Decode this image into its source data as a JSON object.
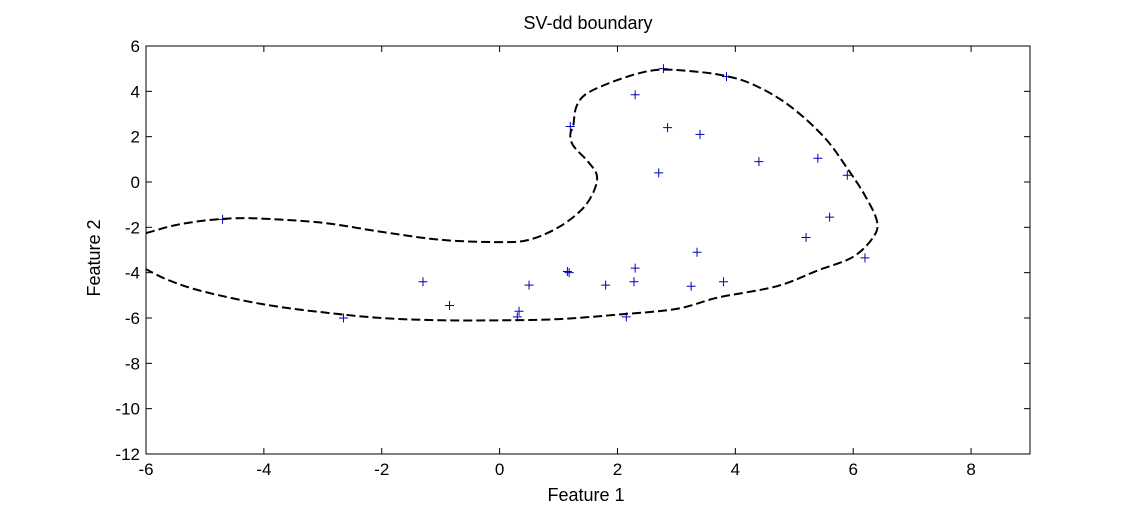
{
  "chart_data": {
    "type": "scatter",
    "title": "SV-dd boundary",
    "xlabel": "Feature 1",
    "ylabel": "Feature 2",
    "xlim": [
      -6,
      9
    ],
    "ylim": [
      -12,
      6
    ],
    "xticks": [
      -6,
      -4,
      -2,
      0,
      2,
      4,
      6,
      8
    ],
    "yticks": [
      6,
      4,
      2,
      0,
      -2,
      -4,
      -6,
      -8,
      -10,
      -12
    ],
    "xtick_labels": [
      "-6",
      "-4",
      "-2",
      "0",
      "2",
      "4",
      "6",
      "8"
    ],
    "ytick_labels": [
      "6",
      "4",
      "2",
      "0",
      "-2",
      "-4",
      "-6",
      "-8",
      "-10",
      "-12"
    ],
    "grid": false,
    "legend": "none",
    "series": [
      {
        "type": "scatter",
        "marker": "+",
        "color": "#0000bf",
        "points": [
          [
            -4.7,
            -1.65
          ],
          [
            -2.65,
            -6.0
          ],
          [
            -1.3,
            -4.4
          ],
          [
            -0.85,
            -5.45
          ],
          [
            0.3,
            -5.95
          ],
          [
            0.33,
            -5.7
          ],
          [
            0.5,
            -4.55
          ],
          [
            1.15,
            -3.95
          ],
          [
            1.18,
            -4.0
          ],
          [
            1.2,
            2.45
          ],
          [
            1.8,
            -4.55
          ],
          [
            2.15,
            -5.95
          ],
          [
            2.28,
            -4.4
          ],
          [
            2.3,
            -3.8
          ],
          [
            2.3,
            3.85
          ],
          [
            2.7,
            0.4
          ],
          [
            2.78,
            5.0
          ],
          [
            2.85,
            2.4
          ],
          [
            3.25,
            -4.6
          ],
          [
            3.35,
            -3.1
          ],
          [
            3.4,
            2.1
          ],
          [
            3.8,
            -4.4
          ],
          [
            3.85,
            4.65
          ],
          [
            4.4,
            0.9
          ],
          [
            5.2,
            -2.45
          ],
          [
            5.4,
            1.05
          ],
          [
            5.6,
            -1.55
          ],
          [
            5.9,
            0.3
          ],
          [
            6.2,
            -3.35
          ]
        ]
      },
      {
        "type": "line",
        "style": "dashed",
        "color": "#000000",
        "closed": true,
        "points": [
          [
            1.25,
            2.5
          ],
          [
            1.3,
            3.3
          ],
          [
            1.45,
            3.85
          ],
          [
            1.8,
            4.3
          ],
          [
            2.3,
            4.75
          ],
          [
            2.7,
            4.95
          ],
          [
            3.2,
            4.9
          ],
          [
            3.8,
            4.7
          ],
          [
            4.3,
            4.3
          ],
          [
            4.9,
            3.4
          ],
          [
            5.5,
            2.0
          ],
          [
            5.9,
            0.6
          ],
          [
            6.2,
            -0.6
          ],
          [
            6.4,
            -1.7
          ],
          [
            6.35,
            -2.4
          ],
          [
            6.0,
            -3.3
          ],
          [
            5.4,
            -3.9
          ],
          [
            4.7,
            -4.6
          ],
          [
            3.7,
            -5.1
          ],
          [
            3.0,
            -5.6
          ],
          [
            2.0,
            -5.85
          ],
          [
            1.0,
            -6.05
          ],
          [
            0.0,
            -6.1
          ],
          [
            -1.0,
            -6.1
          ],
          [
            -2.0,
            -6.0
          ],
          [
            -3.0,
            -5.75
          ],
          [
            -4.0,
            -5.4
          ],
          [
            -5.0,
            -4.85
          ],
          [
            -5.6,
            -4.35
          ],
          [
            -6.0,
            -3.85
          ],
          [
            -6.35,
            -3.4
          ],
          [
            -6.45,
            -2.7
          ],
          [
            -6.3,
            -2.4
          ],
          [
            -6.0,
            -2.25
          ],
          [
            -5.5,
            -1.9
          ],
          [
            -5.0,
            -1.7
          ],
          [
            -4.5,
            -1.6
          ],
          [
            -4.0,
            -1.62
          ],
          [
            -3.0,
            -1.8
          ],
          [
            -2.0,
            -2.2
          ],
          [
            -1.0,
            -2.55
          ],
          [
            0.0,
            -2.65
          ],
          [
            0.5,
            -2.55
          ],
          [
            1.0,
            -2.0
          ],
          [
            1.4,
            -1.2
          ],
          [
            1.6,
            -0.4
          ],
          [
            1.65,
            0.3
          ],
          [
            1.5,
            0.9
          ],
          [
            1.25,
            1.6
          ],
          [
            1.2,
            2.1
          ]
        ]
      }
    ]
  }
}
